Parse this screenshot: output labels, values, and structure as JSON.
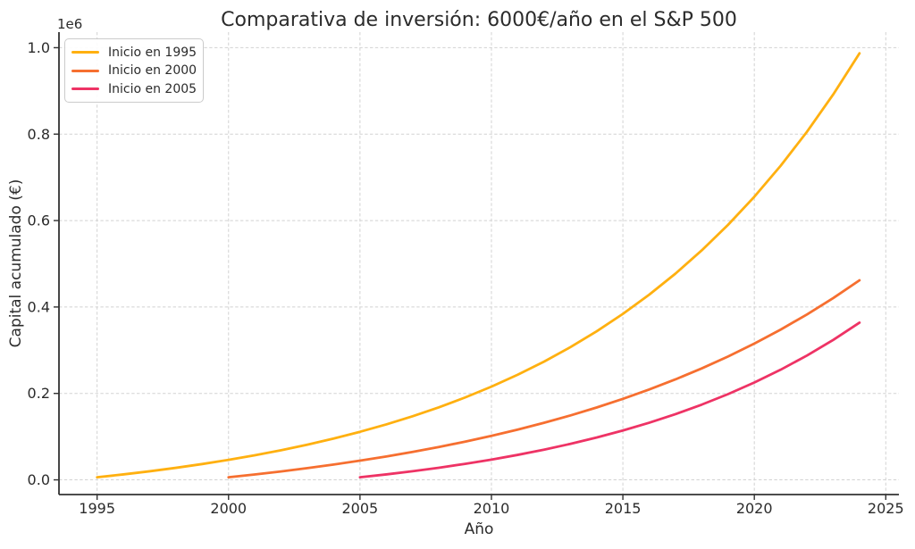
{
  "figure": {
    "background": "#ffffff",
    "text_color": "#2b2b2b",
    "axis_color": "#323232",
    "grid_color": "#d2d2d2"
  },
  "chart_data": {
    "type": "line",
    "title": "Comparativa de inversión: 6000€/año en el S&P 500",
    "xlabel": "Año",
    "ylabel": "Capital acumulado (€)",
    "y_axis_offset_label": "1e6",
    "xlim": [
      1993.55,
      2025.5
    ],
    "ylim": [
      -34000,
      1036000
    ],
    "x_ticks": [
      1995,
      2000,
      2005,
      2010,
      2015,
      2020,
      2025
    ],
    "y_ticks": [
      0,
      200000,
      400000,
      600000,
      800000,
      1000000
    ],
    "y_tick_labels": [
      "0.0",
      "0.2",
      "0.4",
      "0.6",
      "0.8",
      "1.0"
    ],
    "grid": true,
    "grid_style": "dashed",
    "line_width": 2.8,
    "legend_position": "upper-left",
    "series": [
      {
        "name": "Inicio en 1995",
        "color": "#FFB010",
        "start_year": 1995,
        "end_year": 2024,
        "values": [
          6000,
          12600,
          19860,
          27846,
          36631,
          46294,
          56923,
          68615,
          81477,
          95625,
          111187,
          128306,
          147136,
          167850,
          190635,
          215698,
          243268,
          273595,
          306955,
          343650,
          384015,
          428417,
          477258,
          530984,
          590082,
          655091,
          726600,
          805260,
          891786,
          986964
        ]
      },
      {
        "name": "Inicio en 2000",
        "color": "#F66F30",
        "start_year": 2000,
        "end_year": 2024,
        "values": [
          6000,
          12501,
          19545,
          27177,
          35446,
          44406,
          54114,
          64632,
          76029,
          88378,
          101757,
          116254,
          131961,
          148980,
          167420,
          187399,
          209047,
          232502,
          257916,
          285452,
          315287,
          347629,
          382656,
          420628,
          461750
        ]
      },
      {
        "name": "Inicio en 2005",
        "color": "#EE3365",
        "start_year": 2005,
        "end_year": 2024,
        "values": [
          6000,
          12630,
          19956,
          28052,
          36997,
          46882,
          57804,
          69874,
          83210,
          97948,
          114232,
          132226,
          152110,
          174082,
          198360,
          225188,
          254833,
          287590,
          323787,
          363785
        ]
      }
    ]
  }
}
